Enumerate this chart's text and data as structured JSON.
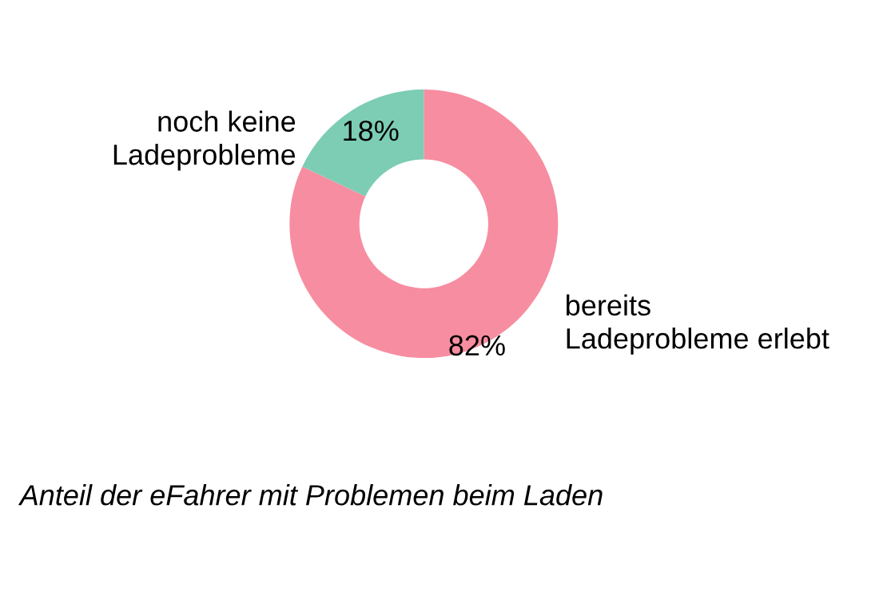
{
  "chart_data": {
    "type": "donut",
    "categories": [
      "bereits\nLadeprobleme erlebt",
      "noch keine\nLadeprobleme"
    ],
    "values": [
      82,
      18
    ],
    "colors": [
      "#f78da0",
      "#7ccdb3"
    ],
    "value_labels": [
      "82%",
      "18%"
    ],
    "annotations": [
      "Anteil der eFahrer mit Problemen beim Laden"
    ]
  }
}
